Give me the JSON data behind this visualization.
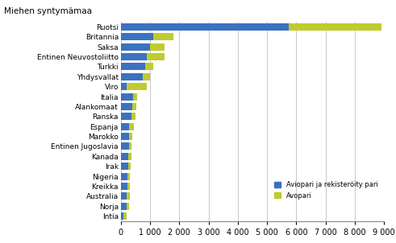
{
  "title": "Miehen syntymämaa",
  "categories": [
    "Ruotsi",
    "Britannia",
    "Saksa",
    "Entinen Neuvostoliitto",
    "Turkki",
    "Yhdysvallat",
    "Viro",
    "Italia",
    "Alankomaat",
    "Ranska",
    "Espanja",
    "Marokko",
    "Entinen Jugoslavia",
    "Kanada",
    "Irak",
    "Nigeria",
    "Kreikka",
    "Australia",
    "Norja",
    "Intia"
  ],
  "blue_values": [
    5750,
    1100,
    1000,
    900,
    820,
    750,
    210,
    430,
    380,
    360,
    280,
    290,
    270,
    260,
    250,
    230,
    240,
    210,
    200,
    100
  ],
  "green_values": [
    3150,
    700,
    500,
    600,
    290,
    250,
    680,
    140,
    140,
    140,
    170,
    110,
    95,
    110,
    80,
    75,
    75,
    90,
    70,
    90
  ],
  "blue_color": "#3C71C0",
  "green_color": "#BFCB2E",
  "legend_blue": "Aviopari ja rekisteröity pari",
  "legend_green": "Avopari",
  "xlim": [
    0,
    9000
  ],
  "xticks": [
    0,
    1000,
    2000,
    3000,
    4000,
    5000,
    6000,
    7000,
    8000,
    9000
  ],
  "xtick_labels": [
    "0",
    "1 000",
    "2 000",
    "3 000",
    "4 000",
    "5 000",
    "6 000",
    "7 000",
    "8 000",
    "9 000"
  ],
  "grid_color": "#c8c8c8"
}
